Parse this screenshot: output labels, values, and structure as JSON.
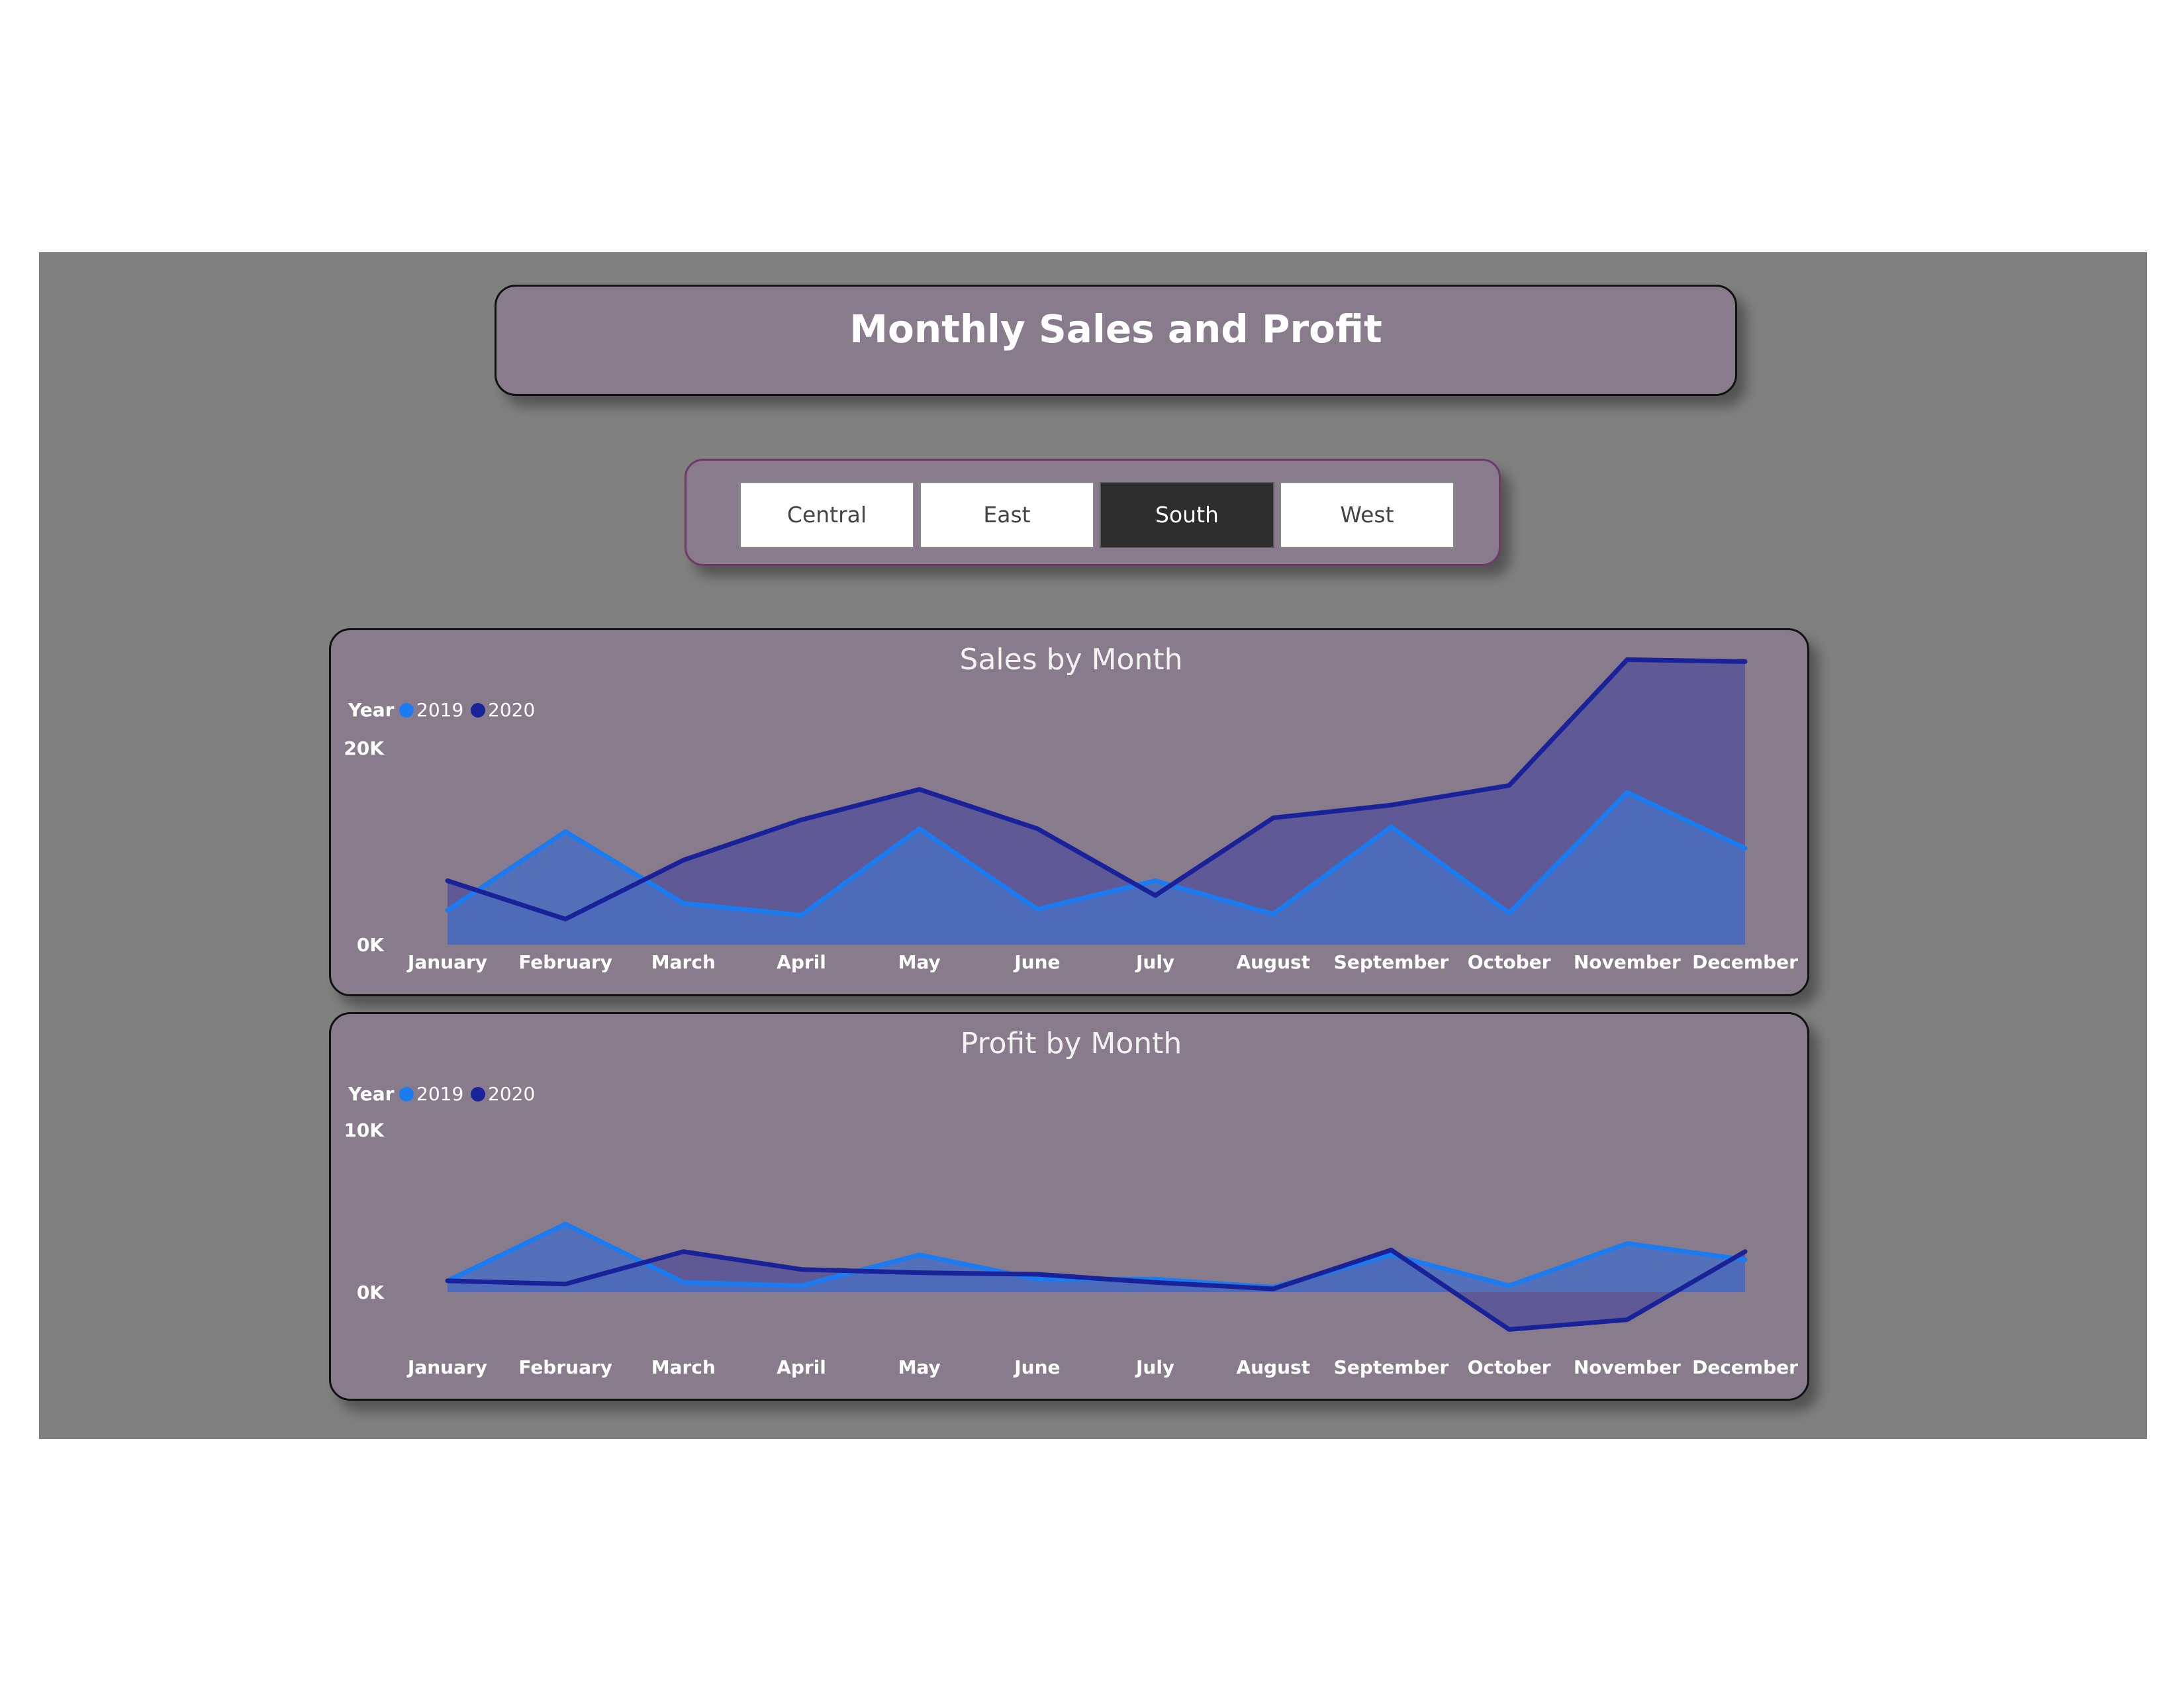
{
  "title": "Monthly Sales and Profit",
  "slicer": {
    "options": [
      "Central",
      "East",
      "South",
      "West"
    ],
    "selected": "South"
  },
  "colors": {
    "background": "#808080",
    "card": "#887b8c",
    "series_2019": "#1a7cf0",
    "series_2020": "#1a2299",
    "area_2019": "#4a6fbf",
    "area_2020": "#5b5696"
  },
  "chart_data": [
    {
      "type": "area",
      "title": "Sales by Month",
      "legend": {
        "title": "Year",
        "position": "top-left"
      },
      "categories": [
        "January",
        "February",
        "March",
        "April",
        "May",
        "June",
        "July",
        "August",
        "September",
        "October",
        "November",
        "December"
      ],
      "series": [
        {
          "name": "2019",
          "color": "#1a7cf0",
          "values": [
            3500,
            11500,
            4200,
            3000,
            11800,
            3600,
            6500,
            3100,
            12000,
            3200,
            15500,
            9800
          ]
        },
        {
          "name": "2020",
          "color": "#1a2299",
          "values": [
            6500,
            2600,
            8600,
            12700,
            15800,
            11800,
            5000,
            12900,
            14200,
            16200,
            29000,
            28800
          ]
        }
      ],
      "yticks": [
        "0K",
        "20K"
      ],
      "ylim": [
        0,
        32000
      ],
      "grid": false
    },
    {
      "type": "area",
      "title": "Profit by Month",
      "legend": {
        "title": "Year",
        "position": "top-left"
      },
      "categories": [
        "January",
        "February",
        "March",
        "April",
        "May",
        "June",
        "July",
        "August",
        "September",
        "October",
        "November",
        "December"
      ],
      "series": [
        {
          "name": "2019",
          "color": "#1a7cf0",
          "values": [
            700,
            4200,
            600,
            400,
            2300,
            800,
            800,
            300,
            2300,
            400,
            3000,
            2000
          ]
        },
        {
          "name": "2020",
          "color": "#1a2299",
          "values": [
            700,
            500,
            2500,
            1400,
            1200,
            1100,
            600,
            200,
            2600,
            -2300,
            -1700,
            2500
          ]
        }
      ],
      "yticks": [
        "0K",
        "10K"
      ],
      "ylim": [
        -6000,
        10000
      ],
      "grid": false
    }
  ]
}
